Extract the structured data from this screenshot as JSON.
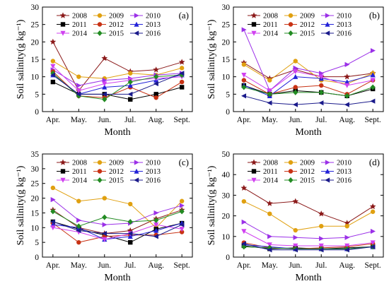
{
  "chart_data": [
    {
      "panel": "(a)",
      "type": "line",
      "categories": [
        "Apr.",
        "May.",
        "Jun.",
        "Jul.",
        "Aug.",
        "Sept."
      ],
      "xlabel": "Month",
      "ylabel": "Soil salinity(g kg⁻¹)",
      "ylim": [
        0,
        30
      ],
      "yticks": [
        0,
        5,
        10,
        15,
        20,
        25,
        30
      ],
      "series": [
        {
          "name": "2008",
          "values": [
            20.0,
            6.0,
            15.3,
            11.5,
            12.0,
            14.2
          ]
        },
        {
          "name": "2009",
          "values": [
            14.5,
            10.0,
            9.5,
            11.0,
            10.5,
            12.5
          ]
        },
        {
          "name": "2010",
          "values": [
            12.0,
            7.5,
            9.0,
            9.5,
            10.5,
            11.0
          ]
        },
        {
          "name": "2011",
          "values": [
            8.5,
            5.0,
            5.0,
            3.5,
            5.0,
            7.0
          ]
        },
        {
          "name": "2012",
          "values": [
            11.5,
            4.5,
            4.0,
            7.0,
            4.0,
            8.5
          ]
        },
        {
          "name": "2013",
          "values": [
            10.5,
            5.0,
            7.0,
            7.5,
            9.0,
            10.5
          ]
        },
        {
          "name": "2014",
          "values": [
            13.0,
            6.0,
            8.0,
            9.0,
            9.5,
            10.0
          ]
        },
        {
          "name": "2015",
          "values": [
            11.0,
            4.5,
            3.5,
            8.5,
            10.0,
            10.5
          ]
        },
        {
          "name": "2016",
          "values": [
            10.5,
            5.0,
            5.0,
            5.0,
            8.0,
            11.0
          ]
        }
      ]
    },
    {
      "panel": "(b)",
      "type": "line",
      "categories": [
        "Apr.",
        "May.",
        "Jun.",
        "Jul.",
        "Aug.",
        "Sept."
      ],
      "xlabel": "Month",
      "ylabel": "Soil salinity(g kg⁻¹)",
      "ylim": [
        0,
        30
      ],
      "yticks": [
        0,
        5,
        10,
        15,
        20,
        25,
        30
      ],
      "series": [
        {
          "name": "2008",
          "values": [
            14.0,
            9.5,
            12.0,
            10.0,
            10.0,
            11.0
          ]
        },
        {
          "name": "2009",
          "values": [
            13.5,
            9.0,
            14.5,
            9.0,
            8.0,
            11.0
          ]
        },
        {
          "name": "2010",
          "values": [
            23.5,
            6.0,
            12.5,
            11.0,
            13.5,
            17.5
          ]
        },
        {
          "name": "2011",
          "values": [
            7.5,
            5.0,
            6.0,
            5.5,
            4.5,
            6.5
          ]
        },
        {
          "name": "2012",
          "values": [
            9.0,
            5.0,
            7.0,
            7.5,
            5.0,
            9.0
          ]
        },
        {
          "name": "2013",
          "values": [
            7.5,
            4.5,
            10.0,
            9.5,
            8.5,
            10.5
          ]
        },
        {
          "name": "2014",
          "values": [
            10.5,
            6.0,
            11.5,
            10.0,
            7.5,
            9.0
          ]
        },
        {
          "name": "2015",
          "values": [
            7.0,
            5.0,
            5.5,
            5.5,
            4.5,
            7.0
          ]
        },
        {
          "name": "2016",
          "values": [
            4.5,
            2.5,
            2.0,
            2.5,
            2.0,
            3.0
          ]
        }
      ]
    },
    {
      "panel": "(c)",
      "type": "line",
      "categories": [
        "Apr.",
        "May.",
        "Jun.",
        "Jul.",
        "Aug.",
        "Sept."
      ],
      "xlabel": "Month",
      "ylabel": "Soil salinity(g kg⁻¹)",
      "ylim": [
        0,
        35
      ],
      "yticks": [
        0,
        5,
        10,
        15,
        20,
        25,
        30,
        35
      ],
      "series": [
        {
          "name": "2008",
          "values": [
            16.0,
            10.0,
            8.0,
            9.0,
            13.0,
            16.0
          ]
        },
        {
          "name": "2009",
          "values": [
            23.5,
            19.0,
            20.0,
            18.0,
            10.0,
            19.0
          ]
        },
        {
          "name": "2010",
          "values": [
            19.5,
            12.5,
            11.0,
            11.5,
            15.0,
            17.5
          ]
        },
        {
          "name": "2011",
          "values": [
            12.0,
            9.5,
            7.5,
            5.0,
            9.5,
            11.5
          ]
        },
        {
          "name": "2012",
          "values": [
            11.5,
            5.0,
            7.0,
            7.5,
            7.5,
            8.5
          ]
        },
        {
          "name": "2013",
          "values": [
            11.0,
            10.0,
            6.0,
            7.0,
            9.0,
            11.5
          ]
        },
        {
          "name": "2014",
          "values": [
            10.0,
            8.5,
            6.0,
            8.0,
            11.0,
            9.5
          ]
        },
        {
          "name": "2015",
          "values": [
            15.5,
            10.5,
            13.5,
            12.0,
            12.5,
            15.5
          ]
        },
        {
          "name": "2016",
          "values": [
            12.0,
            9.0,
            8.0,
            8.0,
            7.0,
            11.0
          ]
        }
      ]
    },
    {
      "panel": "(d)",
      "type": "line",
      "categories": [
        "Apr.",
        "May.",
        "Jun.",
        "Jul.",
        "Aug.",
        "Sept."
      ],
      "xlabel": "Month",
      "ylabel": "Soil salinity(g kg⁻¹)",
      "ylim": [
        0,
        50
      ],
      "yticks": [
        0,
        10,
        20,
        30,
        40,
        50
      ],
      "series": [
        {
          "name": "2008",
          "values": [
            33.5,
            26.0,
            27.0,
            21.0,
            16.5,
            24.5
          ]
        },
        {
          "name": "2009",
          "values": [
            27.0,
            21.0,
            13.0,
            15.0,
            15.0,
            22.0
          ]
        },
        {
          "name": "2010",
          "values": [
            17.0,
            10.0,
            9.5,
            9.0,
            9.5,
            12.5
          ]
        },
        {
          "name": "2011",
          "values": [
            5.5,
            4.0,
            4.5,
            4.0,
            4.5,
            5.0
          ]
        },
        {
          "name": "2012",
          "values": [
            7.0,
            4.5,
            4.0,
            4.5,
            5.0,
            6.5
          ]
        },
        {
          "name": "2013",
          "values": [
            6.0,
            5.0,
            4.0,
            4.0,
            4.0,
            5.0
          ]
        },
        {
          "name": "2014",
          "values": [
            12.5,
            6.0,
            5.5,
            5.5,
            5.5,
            7.0
          ]
        },
        {
          "name": "2015",
          "values": [
            5.0,
            4.5,
            4.0,
            4.0,
            4.0,
            5.0
          ]
        },
        {
          "name": "2016",
          "values": [
            6.5,
            3.5,
            3.5,
            3.5,
            3.5,
            5.0
          ]
        }
      ]
    }
  ],
  "series_styles": [
    {
      "name": "2008",
      "color": "#8b1a1a",
      "marker": "star"
    },
    {
      "name": "2009",
      "color": "#e0a010",
      "marker": "circle"
    },
    {
      "name": "2010",
      "color": "#9b30e8",
      "marker": "tri-right"
    },
    {
      "name": "2011",
      "color": "#000000",
      "marker": "square"
    },
    {
      "name": "2012",
      "color": "#c83214",
      "marker": "circle"
    },
    {
      "name": "2013",
      "color": "#2222d8",
      "marker": "tri-up"
    },
    {
      "name": "2014",
      "color": "#d040f0",
      "marker": "tri-down"
    },
    {
      "name": "2015",
      "color": "#228b22",
      "marker": "diamond"
    },
    {
      "name": "2016",
      "color": "#1a1a8b",
      "marker": "tri-left"
    }
  ]
}
